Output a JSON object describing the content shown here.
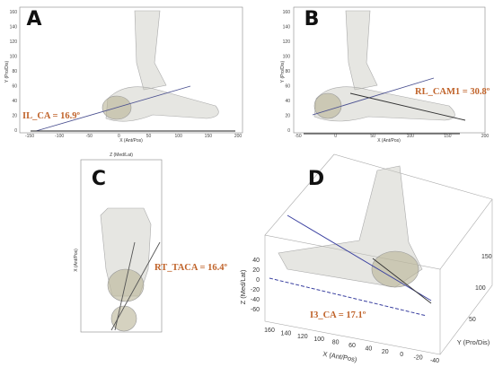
{
  "panels": [
    {
      "label": "A",
      "annotation": "IL_CA = 16.9º",
      "x_axis_label": "X (Ant/Pos)",
      "y_axis_label": "Y (Pro/Dis)",
      "x_ticks": [
        -150,
        -100,
        -50,
        0,
        50,
        100,
        150,
        200
      ],
      "y_ticks": [
        0,
        20,
        40,
        60,
        80,
        100,
        120,
        140,
        160
      ]
    },
    {
      "label": "B",
      "annotation": "RL_CAM1 = 30.8º",
      "x_axis_label": "X (Ant/Pos)",
      "y_axis_label": "Y (Pro/Dis)",
      "x_ticks": [
        -50,
        0,
        50,
        100,
        150,
        200
      ],
      "y_ticks": [
        0,
        20,
        40,
        60,
        80,
        100,
        120,
        140,
        160
      ]
    },
    {
      "label": "C",
      "annotation": "RT_TACA = 16.4º",
      "x_axis_label": "Z (Med/Lat)",
      "y_axis_label": "X (Ant/Pos)"
    },
    {
      "label": "D",
      "annotation": "I3_CA = 17.1º",
      "x_axis_label": "X (Ant/Pos)",
      "y_axis_label": "Y (Pro/Dis)",
      "z_axis_label": "Z (Med/Lat)",
      "x_ticks": [
        160,
        140,
        120,
        100,
        80,
        60,
        40,
        20,
        0,
        -20,
        -40
      ],
      "y_ticks": [
        50,
        100,
        150
      ],
      "z_ticks": [
        40,
        20,
        0,
        -20,
        -40,
        -60
      ]
    }
  ]
}
